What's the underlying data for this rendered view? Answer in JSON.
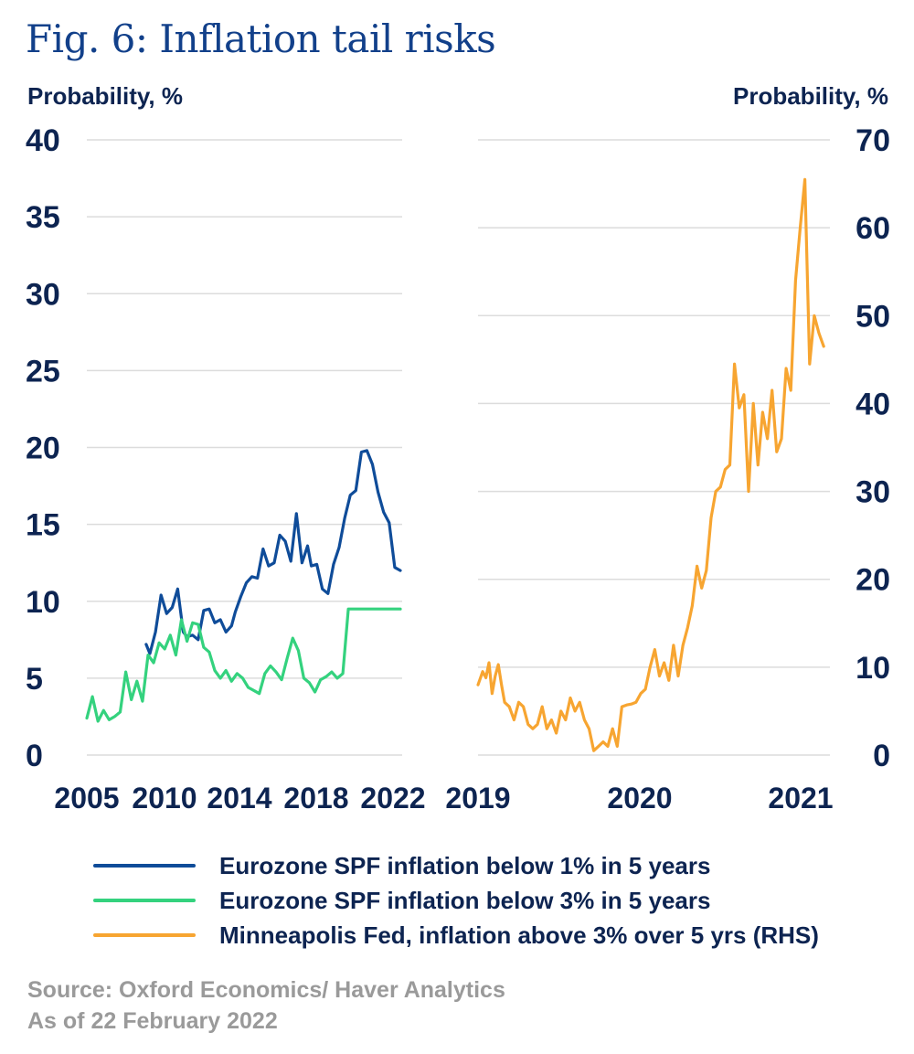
{
  "title": "Fig. 6: Inflation tail risks",
  "colors": {
    "title": "#12408a",
    "axis_text": "#0d2451",
    "grid": "#dcdcdc",
    "source": "#9a9a9a"
  },
  "chart_data": [
    {
      "type": "line",
      "ylabel": "Probability, %",
      "ylim": [
        0,
        40
      ],
      "yticks": [
        0,
        5,
        10,
        15,
        20,
        25,
        30,
        35,
        40
      ],
      "xlim": [
        2005,
        2022
      ],
      "xtick_labels": [
        "2005",
        "2010",
        "2014",
        "2018",
        "2022"
      ],
      "grid": true,
      "series": [
        {
          "name": "Eurozone SPF inflation below 1% in 5 years",
          "color": "#0f4c99",
          "x": [
            2008.2,
            2008.4,
            2008.7,
            2009.0,
            2009.3,
            2009.6,
            2009.9,
            2010.2,
            2010.4,
            2010.7,
            2011.0,
            2011.3,
            2011.6,
            2011.9,
            2012.2,
            2012.5,
            2012.8,
            2013.0,
            2013.3,
            2013.6,
            2013.9,
            2014.2,
            2014.5,
            2014.8,
            2015.1,
            2015.4,
            2015.7,
            2016.0,
            2016.3,
            2016.6,
            2016.9,
            2017.1,
            2017.4,
            2017.7,
            2018.0,
            2018.3,
            2018.6,
            2018.9,
            2019.2,
            2019.5,
            2019.8,
            2020.1,
            2020.4,
            2020.7,
            2021.0,
            2021.3,
            2021.6,
            2021.9
          ],
          "y": [
            7.2,
            6.6,
            8.0,
            10.4,
            9.2,
            9.6,
            10.8,
            8.0,
            7.7,
            7.8,
            7.5,
            9.4,
            9.5,
            8.6,
            8.8,
            8.0,
            8.4,
            9.3,
            10.3,
            11.2,
            11.6,
            11.5,
            13.4,
            12.3,
            12.5,
            14.3,
            13.9,
            12.6,
            15.7,
            12.5,
            13.6,
            12.3,
            12.4,
            10.8,
            10.5,
            12.4,
            13.5,
            15.4,
            16.9,
            17.2,
            19.7,
            19.8,
            18.9,
            17.1,
            15.8,
            15.1,
            12.2,
            12.0
          ]
        },
        {
          "name": "Eurozone SPF inflation below 3% in 5 years",
          "color": "#34d27e",
          "x": [
            2005.0,
            2005.3,
            2005.6,
            2005.9,
            2006.2,
            2006.5,
            2006.8,
            2007.1,
            2007.4,
            2007.7,
            2008.0,
            2008.3,
            2008.6,
            2008.9,
            2009.2,
            2009.5,
            2009.8,
            2010.1,
            2010.4,
            2010.7,
            2011.0,
            2011.3,
            2011.6,
            2011.9,
            2012.2,
            2012.5,
            2012.8,
            2013.1,
            2013.4,
            2013.7,
            2014.0,
            2014.3,
            2014.6,
            2014.9,
            2015.2,
            2015.5,
            2015.8,
            2016.1,
            2016.4,
            2016.7,
            2017.0,
            2017.3,
            2017.6,
            2017.9,
            2018.2,
            2018.5,
            2018.8,
            2019.1,
            2019.4,
            2019.7,
            2020.0,
            2020.3,
            2020.6,
            2020.9,
            2021.2,
            2021.5,
            2021.7,
            2021.9
          ],
          "y": [
            2.4,
            3.8,
            2.2,
            2.9,
            2.3,
            2.5,
            2.8,
            5.4,
            3.6,
            4.8,
            3.5,
            6.5,
            6.0,
            7.3,
            6.9,
            7.8,
            6.5,
            8.8,
            7.4,
            8.6,
            8.5,
            7.0,
            6.7,
            5.5,
            5.0,
            5.5,
            4.8,
            5.3,
            5.0,
            4.4,
            4.2,
            4.0,
            5.3,
            5.8,
            5.4,
            4.9,
            6.3,
            7.6,
            6.8,
            5.0,
            4.7,
            4.1,
            4.9,
            5.1,
            5.4,
            5.0,
            5.3,
            9.5,
            9.5,
            9.5,
            9.5,
            9.5,
            9.5,
            9.5,
            9.5,
            9.5,
            9.5,
            9.5
          ]
        }
      ]
    },
    {
      "type": "line",
      "ylabel": "Probability, %",
      "ylim": [
        0,
        70
      ],
      "yticks": [
        0,
        10,
        20,
        30,
        40,
        50,
        60,
        70
      ],
      "xlim": [
        2019,
        2021.25
      ],
      "xtick_labels": [
        "2019",
        "2020",
        "2021"
      ],
      "grid": true,
      "series": [
        {
          "name": "Minneapolis Fed, inflation above 3% over 5 yrs (RHS)",
          "color": "#f7a531",
          "x": [
            2019.0,
            2019.03,
            2019.05,
            2019.07,
            2019.09,
            2019.11,
            2019.13,
            2019.15,
            2019.17,
            2019.2,
            2019.23,
            2019.26,
            2019.29,
            2019.32,
            2019.35,
            2019.38,
            2019.41,
            2019.44,
            2019.47,
            2019.5,
            2019.53,
            2019.56,
            2019.59,
            2019.62,
            2019.65,
            2019.68,
            2019.71,
            2019.74,
            2019.77,
            2019.8,
            2019.83,
            2019.86,
            2019.89,
            2019.92,
            2019.95,
            2019.98,
            2020.01,
            2020.04,
            2020.07,
            2020.1,
            2020.13,
            2020.16,
            2020.19,
            2020.22,
            2020.25,
            2020.28,
            2020.31,
            2020.34,
            2020.37,
            2020.4,
            2020.43,
            2020.46,
            2020.49,
            2020.52,
            2020.55,
            2020.58,
            2020.61,
            2020.64,
            2020.67,
            2020.7,
            2020.73,
            2020.76,
            2020.79,
            2020.82,
            2020.85,
            2020.88,
            2020.91,
            2020.94,
            2020.97,
            2021.0,
            2021.03,
            2021.06,
            2021.09,
            2021.12,
            2021.15,
            2021.18,
            2021.21
          ],
          "y": [
            8.0,
            9.5,
            8.8,
            10.5,
            7.0,
            9.0,
            10.3,
            8.0,
            6.0,
            5.5,
            4.0,
            6.0,
            5.5,
            3.5,
            3.0,
            3.5,
            5.5,
            3.0,
            4.0,
            2.5,
            5.0,
            4.0,
            6.5,
            5.0,
            6.0,
            4.0,
            3.0,
            0.5,
            1.0,
            1.5,
            1.0,
            3.0,
            1.0,
            5.5,
            5.7,
            5.8,
            6.0,
            7.0,
            7.5,
            10.0,
            12.0,
            9.0,
            10.5,
            8.5,
            12.5,
            9.0,
            12.5,
            14.5,
            17.0,
            21.5,
            19.0,
            21.0,
            27.0,
            30.0,
            30.5,
            32.5,
            33.0,
            44.5,
            39.5,
            41.0,
            30.0,
            40.0,
            33.0,
            39.0,
            36.0,
            41.5,
            34.5,
            36.0,
            44.0,
            41.5,
            54.0,
            60.0,
            65.5,
            44.5,
            50.0,
            48.0,
            46.5
          ]
        }
      ]
    }
  ],
  "legend": [
    {
      "label": "Eurozone SPF inflation below 1% in 5 years",
      "color": "#0f4c99"
    },
    {
      "label": "Eurozone SPF inflation below 3% in 5 years",
      "color": "#34d27e"
    },
    {
      "label": "Minneapolis Fed, inflation above 3% over 5 yrs (RHS)",
      "color": "#f7a531"
    }
  ],
  "source": {
    "line1": "Source: Oxford Economics/ Haver Analytics",
    "line2": "As of 22 February 2022"
  }
}
